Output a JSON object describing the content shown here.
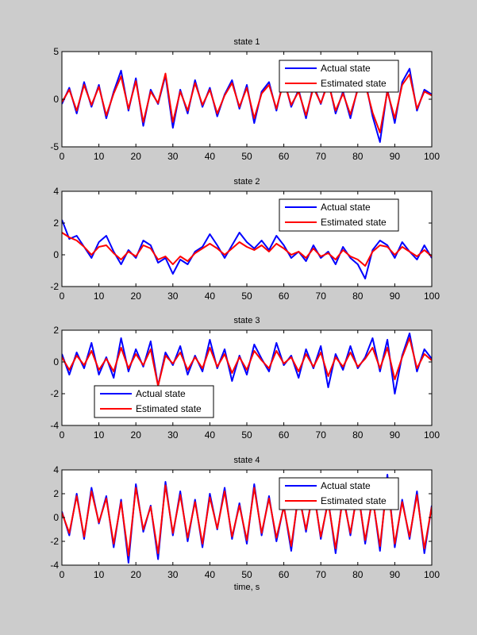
{
  "figure": {
    "background": "#cccccc",
    "axes_background": "#ffffff",
    "xlabel": "time, s"
  },
  "chart_data": [
    {
      "type": "line",
      "title": "state 1",
      "xlim": [
        0,
        100
      ],
      "ylim": [
        -5,
        5
      ],
      "xticks": [
        "0",
        "10",
        "20",
        "30",
        "40",
        "50",
        "60",
        "70",
        "80",
        "90",
        "100"
      ],
      "yticks": [
        "5",
        "0",
        "-5"
      ],
      "legend": "top-right",
      "series": [
        {
          "name": "Actual state",
          "color": "#0000ff",
          "x": [
            0,
            2,
            4,
            6,
            8,
            10,
            12,
            14,
            16,
            18,
            20,
            22,
            24,
            26,
            28,
            30,
            32,
            34,
            36,
            38,
            40,
            42,
            44,
            46,
            48,
            50,
            52,
            54,
            56,
            58,
            60,
            62,
            64,
            66,
            68,
            70,
            72,
            74,
            76,
            78,
            80,
            82,
            84,
            86,
            88,
            90,
            92,
            94,
            96,
            98,
            100
          ],
          "values": [
            -0.5,
            1.2,
            -1.5,
            1.8,
            -0.8,
            1.5,
            -2.0,
            0.8,
            3.0,
            -1.2,
            2.2,
            -2.8,
            1.0,
            -0.5,
            2.5,
            -3.0,
            1.0,
            -1.5,
            2.0,
            -0.8,
            1.2,
            -1.8,
            0.5,
            2.0,
            -1.0,
            1.5,
            -2.5,
            0.8,
            1.8,
            -1.2,
            2.2,
            -0.8,
            1.0,
            -2.0,
            1.5,
            -0.5,
            2.0,
            -1.5,
            0.8,
            -2.0,
            1.2,
            2.0,
            -1.8,
            -4.5,
            1.0,
            -2.5,
            1.8,
            3.2,
            -1.2,
            1.0,
            0.5
          ]
        },
        {
          "name": "Estimated state",
          "color": "#ff0000",
          "x": [
            0,
            2,
            4,
            6,
            8,
            10,
            12,
            14,
            16,
            18,
            20,
            22,
            24,
            26,
            28,
            30,
            32,
            34,
            36,
            38,
            40,
            42,
            44,
            46,
            48,
            50,
            52,
            54,
            56,
            58,
            60,
            62,
            64,
            66,
            68,
            70,
            72,
            74,
            76,
            78,
            80,
            82,
            84,
            86,
            88,
            90,
            92,
            94,
            96,
            98,
            100
          ],
          "values": [
            -0.3,
            1.0,
            -1.2,
            1.5,
            -0.6,
            1.3,
            -1.7,
            0.6,
            2.4,
            -1.0,
            1.9,
            -2.4,
            0.8,
            -0.4,
            2.7,
            -2.4,
            0.8,
            -1.2,
            1.7,
            -0.6,
            1.0,
            -1.5,
            0.4,
            1.7,
            -0.8,
            1.2,
            -2.0,
            0.6,
            1.5,
            -1.0,
            1.9,
            -0.6,
            0.8,
            -1.7,
            1.2,
            -0.4,
            1.7,
            -1.2,
            0.6,
            -1.6,
            1.0,
            1.6,
            -1.4,
            -3.5,
            0.8,
            -2.0,
            1.5,
            2.6,
            -1.0,
            0.8,
            0.4
          ]
        }
      ]
    },
    {
      "type": "line",
      "title": "state 2",
      "xlim": [
        0,
        100
      ],
      "ylim": [
        -2,
        4
      ],
      "xticks": [
        "0",
        "10",
        "20",
        "30",
        "40",
        "50",
        "60",
        "70",
        "80",
        "90",
        "100"
      ],
      "yticks": [
        "4",
        "2",
        "0",
        "-2"
      ],
      "legend": "top-right",
      "series": [
        {
          "name": "Actual state",
          "color": "#0000ff",
          "x": [
            0,
            2,
            4,
            6,
            8,
            10,
            12,
            14,
            16,
            18,
            20,
            22,
            24,
            26,
            28,
            30,
            32,
            34,
            36,
            38,
            40,
            42,
            44,
            46,
            48,
            50,
            52,
            54,
            56,
            58,
            60,
            62,
            64,
            66,
            68,
            70,
            72,
            74,
            76,
            78,
            80,
            82,
            84,
            86,
            88,
            90,
            92,
            94,
            96,
            98,
            100
          ],
          "values": [
            2.2,
            1.0,
            1.2,
            0.5,
            -0.2,
            0.8,
            1.2,
            0.2,
            -0.6,
            0.3,
            -0.2,
            0.9,
            0.6,
            -0.5,
            -0.2,
            -1.2,
            -0.3,
            -0.6,
            0.2,
            0.5,
            1.3,
            0.6,
            -0.2,
            0.6,
            1.4,
            0.8,
            0.4,
            0.9,
            0.3,
            1.2,
            0.6,
            -0.2,
            0.2,
            -0.4,
            0.6,
            -0.2,
            0.2,
            -0.6,
            0.5,
            -0.2,
            -0.6,
            -1.5,
            0.3,
            0.9,
            0.6,
            -0.2,
            0.8,
            0.2,
            -0.3,
            0.6,
            -0.2
          ]
        },
        {
          "name": "Estimated state",
          "color": "#ff0000",
          "x": [
            0,
            2,
            4,
            6,
            8,
            10,
            12,
            14,
            16,
            18,
            20,
            22,
            24,
            26,
            28,
            30,
            32,
            34,
            36,
            38,
            40,
            42,
            44,
            46,
            48,
            50,
            52,
            54,
            56,
            58,
            60,
            62,
            64,
            66,
            68,
            70,
            72,
            74,
            76,
            78,
            80,
            82,
            84,
            86,
            88,
            90,
            92,
            94,
            96,
            98,
            100
          ],
          "values": [
            1.4,
            1.1,
            0.9,
            0.5,
            0.0,
            0.5,
            0.6,
            0.1,
            -0.3,
            0.2,
            -0.1,
            0.6,
            0.4,
            -0.3,
            -0.1,
            -0.6,
            -0.1,
            -0.4,
            0.1,
            0.4,
            0.7,
            0.4,
            0.0,
            0.4,
            0.8,
            0.5,
            0.3,
            0.6,
            0.2,
            0.7,
            0.4,
            0.0,
            0.2,
            -0.2,
            0.4,
            -0.1,
            0.1,
            -0.3,
            0.3,
            -0.1,
            -0.3,
            -0.7,
            0.2,
            0.6,
            0.5,
            0.0,
            0.5,
            0.2,
            -0.1,
            0.3,
            -0.1
          ]
        }
      ]
    },
    {
      "type": "line",
      "title": "state 3",
      "xlim": [
        0,
        100
      ],
      "ylim": [
        -4,
        2
      ],
      "xticks": [
        "0",
        "10",
        "20",
        "30",
        "40",
        "50",
        "60",
        "70",
        "80",
        "90",
        "100"
      ],
      "yticks": [
        "2",
        "0",
        "-2",
        "-4"
      ],
      "legend": "bottom-left",
      "series": [
        {
          "name": "Actual state",
          "color": "#0000ff",
          "x": [
            0,
            2,
            4,
            6,
            8,
            10,
            12,
            14,
            16,
            18,
            20,
            22,
            24,
            26,
            28,
            30,
            32,
            34,
            36,
            38,
            40,
            42,
            44,
            46,
            48,
            50,
            52,
            54,
            56,
            58,
            60,
            62,
            64,
            66,
            68,
            70,
            72,
            74,
            76,
            78,
            80,
            82,
            84,
            86,
            88,
            90,
            92,
            94,
            96,
            98,
            100
          ],
          "values": [
            0.5,
            -0.8,
            0.6,
            -0.4,
            1.2,
            -0.8,
            0.3,
            -1.0,
            1.5,
            -0.6,
            0.8,
            -0.3,
            1.3,
            -1.5,
            0.6,
            -0.2,
            1.0,
            -0.8,
            0.4,
            -0.6,
            1.4,
            -0.4,
            0.8,
            -1.2,
            0.4,
            -0.8,
            1.1,
            0.2,
            -0.6,
            1.2,
            -0.2,
            0.4,
            -1.0,
            0.8,
            -0.4,
            1.0,
            -1.6,
            0.5,
            -0.5,
            1.0,
            -0.4,
            0.3,
            1.5,
            -0.6,
            1.4,
            -2.0,
            0.4,
            1.8,
            -0.6,
            0.8,
            0.2
          ]
        },
        {
          "name": "Estimated state",
          "color": "#ff0000",
          "x": [
            0,
            2,
            4,
            6,
            8,
            10,
            12,
            14,
            16,
            18,
            20,
            22,
            24,
            26,
            28,
            30,
            32,
            34,
            36,
            38,
            40,
            42,
            44,
            46,
            48,
            50,
            52,
            54,
            56,
            58,
            60,
            62,
            64,
            66,
            68,
            70,
            72,
            74,
            76,
            78,
            80,
            82,
            84,
            86,
            88,
            90,
            92,
            94,
            96,
            98,
            100
          ],
          "values": [
            0.3,
            -0.5,
            0.4,
            -0.2,
            0.7,
            -0.5,
            0.2,
            -0.6,
            0.9,
            -0.4,
            0.5,
            -0.2,
            0.8,
            -1.5,
            0.4,
            -0.1,
            0.6,
            -0.5,
            0.3,
            -0.4,
            0.9,
            -0.3,
            0.5,
            -0.7,
            0.3,
            -0.5,
            0.7,
            0.1,
            -0.4,
            0.7,
            -0.1,
            0.3,
            -0.6,
            0.5,
            -0.3,
            0.6,
            -0.9,
            0.3,
            -0.3,
            0.6,
            -0.3,
            0.2,
            0.9,
            -0.4,
            0.9,
            -1.1,
            0.3,
            1.5,
            -0.4,
            0.5,
            0.1
          ]
        }
      ]
    },
    {
      "type": "line",
      "title": "state 4",
      "xlim": [
        0,
        100
      ],
      "ylim": [
        -4,
        4
      ],
      "xticks": [
        "0",
        "10",
        "20",
        "30",
        "40",
        "50",
        "60",
        "70",
        "80",
        "90",
        "100"
      ],
      "yticks": [
        "4",
        "2",
        "0",
        "-2",
        "-4"
      ],
      "legend": "top-right",
      "xlabel": "time, s",
      "series": [
        {
          "name": "Actual state",
          "color": "#0000ff",
          "x": [
            0,
            2,
            4,
            6,
            8,
            10,
            12,
            14,
            16,
            18,
            20,
            22,
            24,
            26,
            28,
            30,
            32,
            34,
            36,
            38,
            40,
            42,
            44,
            46,
            48,
            50,
            52,
            54,
            56,
            58,
            60,
            62,
            64,
            66,
            68,
            70,
            72,
            74,
            76,
            78,
            80,
            82,
            84,
            86,
            88,
            90,
            92,
            94,
            96,
            98,
            100
          ],
          "values": [
            0.5,
            -1.5,
            2.0,
            -1.8,
            2.5,
            -0.5,
            1.8,
            -2.5,
            1.5,
            -3.8,
            2.8,
            -1.2,
            1.0,
            -3.5,
            3.0,
            -1.5,
            2.2,
            -2.0,
            1.5,
            -2.5,
            2.0,
            -1.0,
            2.5,
            -1.8,
            1.2,
            -2.2,
            2.8,
            -1.5,
            1.8,
            -2.0,
            1.0,
            -2.8,
            2.2,
            -1.2,
            2.5,
            -1.8,
            1.5,
            -3.0,
            2.0,
            -1.5,
            2.5,
            -2.2,
            1.8,
            -2.8,
            3.6,
            -2.5,
            1.5,
            -1.8,
            2.2,
            -3.0,
            1.0
          ]
        },
        {
          "name": "Estimated state",
          "color": "#ff0000",
          "x": [
            0,
            2,
            4,
            6,
            8,
            10,
            12,
            14,
            16,
            18,
            20,
            22,
            24,
            26,
            28,
            30,
            32,
            34,
            36,
            38,
            40,
            42,
            44,
            46,
            48,
            50,
            52,
            54,
            56,
            58,
            60,
            62,
            64,
            66,
            68,
            70,
            72,
            74,
            76,
            78,
            80,
            82,
            84,
            86,
            88,
            90,
            92,
            94,
            96,
            98,
            100
          ],
          "values": [
            0.4,
            -1.3,
            1.8,
            -1.6,
            2.2,
            -0.4,
            1.6,
            -2.2,
            1.3,
            -3.2,
            2.5,
            -1.0,
            0.9,
            -3.0,
            2.7,
            -1.3,
            1.9,
            -1.7,
            1.3,
            -2.2,
            1.7,
            -0.9,
            2.2,
            -1.6,
            1.0,
            -1.9,
            2.5,
            -1.3,
            1.6,
            -1.7,
            0.9,
            -2.4,
            1.9,
            -1.0,
            2.2,
            -1.6,
            1.3,
            -2.6,
            1.7,
            -1.3,
            2.2,
            -1.9,
            1.6,
            -2.4,
            3.0,
            -2.2,
            1.3,
            -1.6,
            1.9,
            -2.6,
            0.9
          ]
        }
      ]
    }
  ]
}
